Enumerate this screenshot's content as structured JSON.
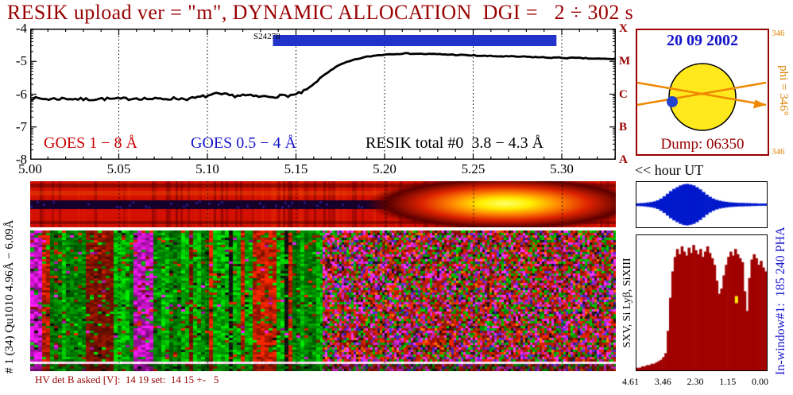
{
  "title": "RESIK upload ver = \"m\", DYNAMIC ALLOCATION  DGI =   2 ÷ 302 s",
  "chart_data": [
    {
      "type": "line",
      "name": "flux-time-series",
      "x_range": [
        5.0,
        5.333
      ],
      "y_range": [
        -8,
        -4
      ],
      "x_tick_labels": [
        "5.00",
        "5.05",
        "5.10",
        "5.15",
        "5.20",
        "5.25",
        "5.30"
      ],
      "y_tick_labels": [
        "-4",
        "-5",
        "-6",
        "-7",
        "-8"
      ],
      "goes_class_letters": [
        "X",
        "M",
        "C",
        "B",
        "A"
      ],
      "legend": [
        {
          "label": "GOES 1 − 8 Å",
          "color": "#cc0000"
        },
        {
          "label": "GOES 0.5 − 4 Å",
          "color": "#1515cc"
        },
        {
          "label": "RESIK total #0  3.8 − 4.3 Å",
          "color": "#000000"
        }
      ],
      "event_bar": {
        "label": "S24278",
        "t_start": 5.137,
        "t_end": 5.297,
        "color": "#2233cc"
      },
      "x": [
        5.0,
        5.01,
        5.02,
        5.03,
        5.04,
        5.05,
        5.06,
        5.07,
        5.08,
        5.09,
        5.095,
        5.1,
        5.105,
        5.11,
        5.115,
        5.12,
        5.125,
        5.13,
        5.14,
        5.15,
        5.155,
        5.16,
        5.165,
        5.17,
        5.175,
        5.18,
        5.185,
        5.19,
        5.195,
        5.2,
        5.205,
        5.21,
        5.215,
        5.22,
        5.23,
        5.24,
        5.25,
        5.26,
        5.27,
        5.28,
        5.29,
        5.3,
        5.31,
        5.32,
        5.333
      ],
      "y": [
        -6.12,
        -6.15,
        -6.13,
        -6.16,
        -6.14,
        -6.15,
        -6.12,
        -6.15,
        -6.13,
        -6.14,
        -6.1,
        -6.05,
        -6.0,
        -6.02,
        -6.05,
        -6.03,
        -6.06,
        -6.08,
        -6.06,
        -6.02,
        -5.9,
        -5.7,
        -5.45,
        -5.25,
        -5.1,
        -5.0,
        -4.92,
        -4.86,
        -4.82,
        -4.79,
        -4.77,
        -4.76,
        -4.76,
        -4.77,
        -4.78,
        -4.8,
        -4.82,
        -4.84,
        -4.85,
        -4.86,
        -4.88,
        -4.89,
        -4.9,
        -4.92,
        -4.93
      ]
    },
    {
      "type": "histogram",
      "name": "pha-profile-top",
      "color": "#0018cc",
      "values": [
        0.06,
        0.07,
        0.08,
        0.1,
        0.12,
        0.15,
        0.2,
        0.28,
        0.38,
        0.5,
        0.62,
        0.72,
        0.8,
        0.88,
        0.93,
        0.95,
        0.92,
        0.88,
        0.8,
        0.7,
        0.58,
        0.46,
        0.36,
        0.28,
        0.22,
        0.18,
        0.15,
        0.13,
        0.11,
        0.1,
        0.09,
        0.08,
        0.08,
        0.07,
        0.07,
        0.06,
        0.06,
        0.05,
        0.05,
        0.05
      ]
    },
    {
      "type": "histogram",
      "name": "pha-spectrum-main",
      "color": "#a00000",
      "x_ticks": [
        "4.61",
        "3.46",
        "2.30",
        "1.15",
        "0.00"
      ],
      "marker": {
        "x": 0.755,
        "y": 0.45,
        "color": "#ffee00"
      },
      "values": [
        0.02,
        0.02,
        0.03,
        0.03,
        0.04,
        0.04,
        0.05,
        0.05,
        0.06,
        0.07,
        0.08,
        0.1,
        0.13,
        0.3,
        0.55,
        0.75,
        0.86,
        0.92,
        0.88,
        0.94,
        0.9,
        0.87,
        0.93,
        0.89,
        0.95,
        0.91,
        0.88,
        0.92,
        0.86,
        0.9,
        0.94,
        0.89,
        0.85,
        0.8,
        0.68,
        0.58,
        0.62,
        0.72,
        0.8,
        0.86,
        0.9,
        0.87,
        0.92,
        0.88,
        0.85,
        0.82,
        0.6,
        0.45,
        0.7,
        0.84,
        0.88,
        0.85,
        0.8,
        0.83,
        0.78,
        0.75
      ]
    },
    {
      "type": "heatmap",
      "name": "spectrogram-main",
      "left_palette": [
        "#00b400",
        "#007a00",
        "#c41e00",
        "#7a1200",
        "#c414c4",
        "#141414"
      ],
      "left_weights": [
        0.38,
        0.16,
        0.2,
        0.1,
        0.08,
        0.08
      ],
      "right_palette": [
        "#c81e00",
        "#d428d4",
        "#00a800",
        "#801000",
        "#4828c8",
        "#d86400",
        "#181818"
      ],
      "right_weights": [
        0.3,
        0.22,
        0.2,
        0.1,
        0.07,
        0.06,
        0.05
      ],
      "stripe_y": 0.93,
      "base_color": "#d41000",
      "blob_core": "#ffee00",
      "dark_band": "#14002a"
    }
  ],
  "sun": {
    "date": "20 09 2002",
    "dump": "Dump: 06350",
    "phi": "phi = 346°",
    "corner": "346"
  },
  "labels": {
    "hour": "<< hour UT",
    "left_channel": "# 1 (34) Qu1010 4.96Å − 6.09Å",
    "species": "SXV, Si Lyβ, SiXIII",
    "in_window": "In-window#1:  185 240 PHA",
    "hv": "HV det B asked [V]:  14 19 set:  14 15 +-   5"
  }
}
